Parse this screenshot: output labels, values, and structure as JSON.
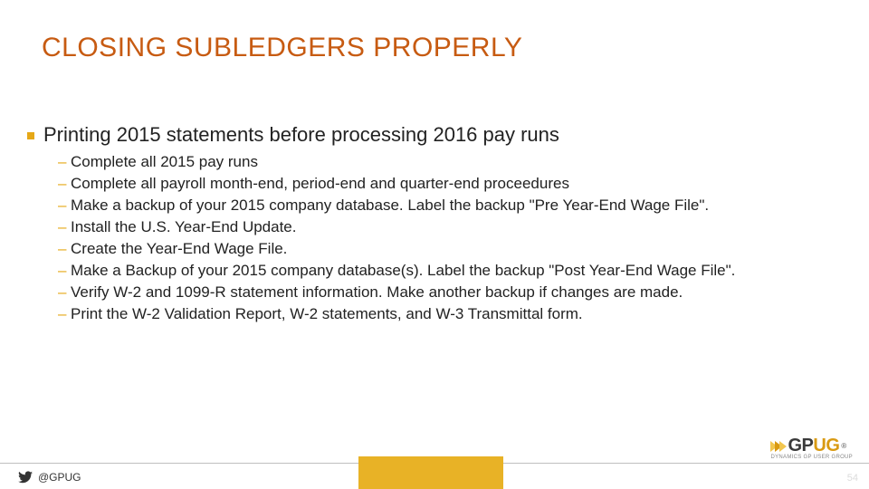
{
  "colors": {
    "title": "#c75b12",
    "bullet": "#e6a817",
    "dash": "#e6a817",
    "text": "#222222",
    "gold_bar": "#e8b226",
    "footer_line": "#bfbfbf",
    "twitter": "#333333",
    "pagenum": "#dcdcdc",
    "chevron_light": "#f2c64f",
    "chevron_dark": "#d99a12",
    "logo_gp": "#3a3a3a",
    "logo_ug": "#d99a12",
    "logo_sub": "#888888"
  },
  "title": "CLOSING SUBLEDGERS PROPERLY",
  "section_title": "Printing 2015 statements before processing 2016 pay runs",
  "items": [
    "Complete all 2015 pay runs",
    "Complete all payroll month-end, period-end and quarter-end proceedures",
    "Make a backup of your 2015 company database. Label the backup \"Pre Year-End Wage File\".",
    "Install the U.S. Year-End Update.",
    "Create the Year-End Wage File.",
    "Make a Backup of your 2015 company database(s). Label the backup \"Post Year-End Wage File\".",
    "Verify W-2 and 1099-R statement information. Make another backup if changes are made.",
    "Print the W-2 Validation Report, W-2 statements, and W-3 Transmittal form."
  ],
  "footer": {
    "handle": "@GPUG",
    "page": "54",
    "logo_gp": "GP",
    "logo_ug": "UG",
    "logo_sub": "DYNAMICS GP USER GROUP",
    "reg": "®"
  }
}
